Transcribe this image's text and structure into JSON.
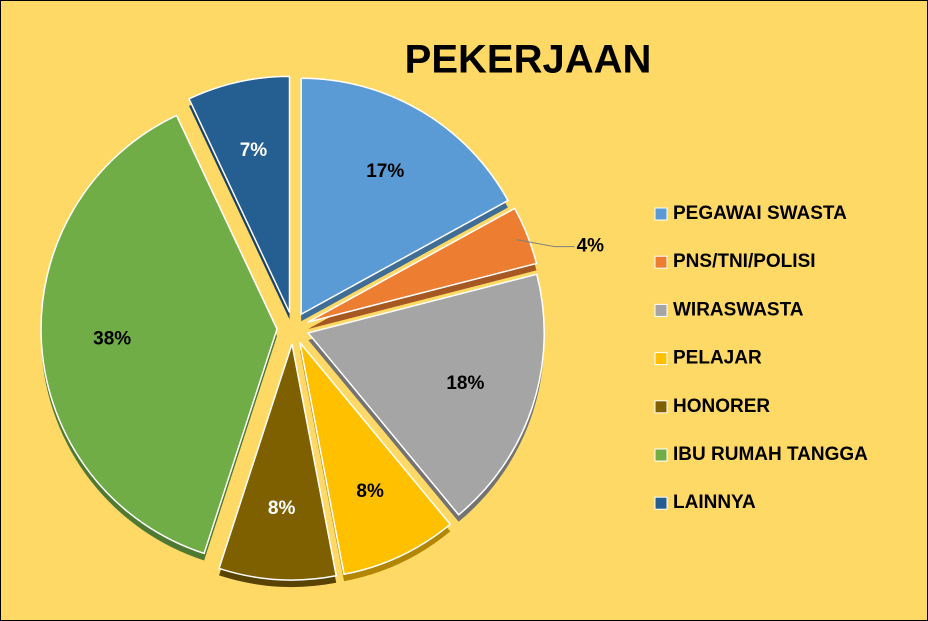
{
  "chart_data": {
    "type": "pie",
    "title": "PEKERJAAN",
    "categories": [
      "PEGAWAI SWASTA",
      "PNS/TNI/POLISI",
      "WIRASWASTA",
      "PELAJAR",
      "HONORER",
      "IBU RUMAH TANGGA",
      "LAINNYA"
    ],
    "values": [
      17,
      4,
      18,
      8,
      8,
      38,
      7
    ],
    "value_labels": [
      "17%",
      "4%",
      "18%",
      "8%",
      "8%",
      "38%",
      "7%"
    ],
    "colors": [
      "#5b9bd5",
      "#ed7d31",
      "#a5a5a5",
      "#ffc000",
      "#7f6000",
      "#70ad47",
      "#255e91"
    ],
    "legend": "right"
  }
}
